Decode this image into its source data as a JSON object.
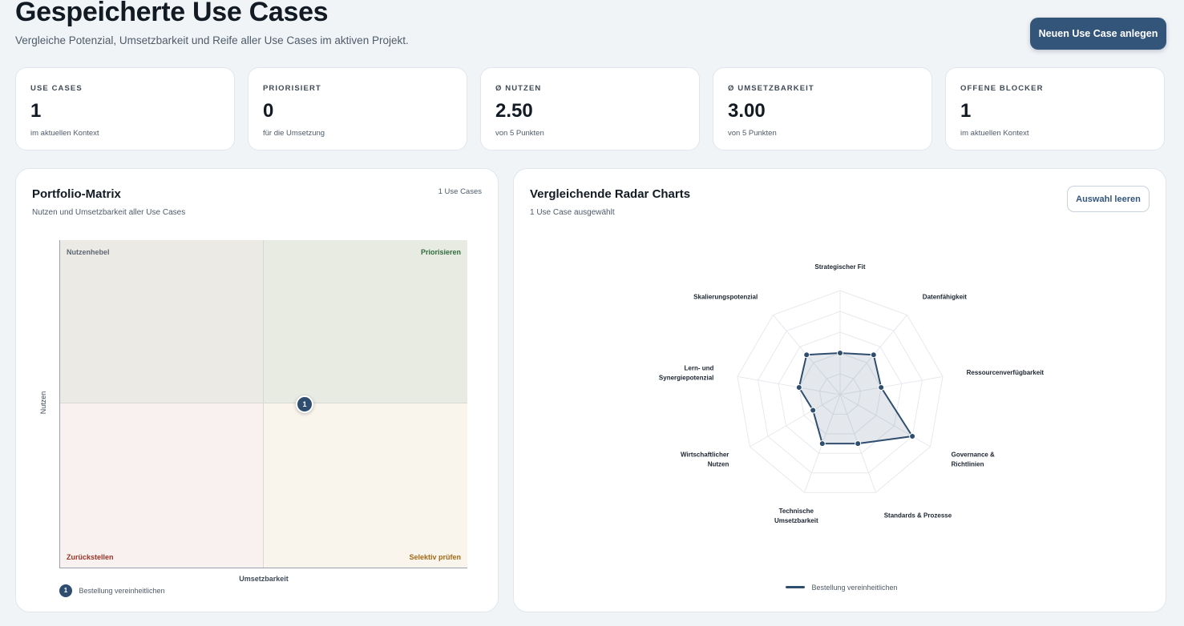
{
  "header": {
    "title": "Gespeicherte Use Cases",
    "subtitle": "Vergleiche Potenzial, Umsetzbarkeit und Reife aller Use Cases im aktiven Projekt.",
    "primary_button": "Neuen Use Case anlegen"
  },
  "stats": [
    {
      "label": "USE CASES",
      "value": "1",
      "note": "im aktuellen Kontext"
    },
    {
      "label": "PRIORISIERT",
      "value": "0",
      "note": "für die Umsetzung"
    },
    {
      "label": "Ø NUTZEN",
      "value": "2.50",
      "note": "von 5 Punkten"
    },
    {
      "label": "Ø UMSETZBARKEIT",
      "value": "3.00",
      "note": "von 5 Punkten"
    },
    {
      "label": "OFFENE BLOCKER",
      "value": "1",
      "note": "im aktuellen Kontext"
    }
  ],
  "portfolio": {
    "title": "Portfolio-Matrix",
    "subtitle": "Nutzen und Umsetzbarkeit aller Use Cases",
    "count_label": "1 Use Cases",
    "quadrants": {
      "top_left": "Nutzenhebel",
      "top_right": "Priorisieren",
      "bottom_left": "Zurückstellen",
      "bottom_right": "Selektiv prüfen"
    },
    "x_label": "Umsetzbarkeit",
    "y_label": "Nutzen",
    "x_range": [
      1,
      5
    ],
    "y_range": [
      0,
      5
    ],
    "points": [
      {
        "id": "1",
        "name": "Bestellung vereinheitlichen",
        "x": 3.0,
        "y": 2.5
      }
    ],
    "colors": {
      "point": "#2f4d6e",
      "priorisieren": "#2f6b3c",
      "zurueckstellen": "#9b3327",
      "selektiv": "#a36a16"
    }
  },
  "radar": {
    "title": "Vergleichende Radar Charts",
    "subtitle": "1 Use Case ausgewählt",
    "clear_button": "Auswahl leeren",
    "scale_max": 5,
    "rings": 5,
    "axes": [
      {
        "label": [
          "Strategischer Fit"
        ],
        "anchor": "middle"
      },
      {
        "label": [
          "Datenfähigkeit"
        ],
        "anchor": "start"
      },
      {
        "label": [
          "Ressourcenverfügbarkeit"
        ],
        "anchor": "start"
      },
      {
        "label": [
          "Governance &",
          "Richtlinien"
        ],
        "anchor": "start"
      },
      {
        "label": [
          "Standards & Prozesse"
        ],
        "anchor": "start"
      },
      {
        "label": [
          "Technische",
          "Umsetzbarkeit"
        ],
        "anchor": "middle"
      },
      {
        "label": [
          "Wirtschaftlicher",
          "Nutzen"
        ],
        "anchor": "end"
      },
      {
        "label": [
          "Lern- und",
          "Synergiepotenzial"
        ],
        "anchor": "end"
      },
      {
        "label": [
          "Skalierungspotenzial"
        ],
        "anchor": "end"
      }
    ],
    "series": [
      {
        "name": "Bestellung vereinheitlichen",
        "color": "#2f4d6e",
        "values": [
          2,
          2.5,
          2,
          4,
          2.5,
          2.5,
          1.5,
          2,
          2.5
        ]
      }
    ]
  }
}
